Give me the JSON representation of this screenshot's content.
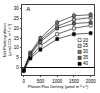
{
  "chart_data": {
    "type": "line",
    "title": "A",
    "xlabel": "Photon Flux Density (μmol m⁻² s⁻¹)",
    "ylabel": "Net Photosynthesis\n(μmol CO₂ m⁻² s⁻¹)",
    "x": [
      0,
      200,
      500,
      1000,
      1500,
      2000
    ],
    "series": [
      {
        "name": "20",
        "color": "white",
        "values": [
          -1.0,
          5.0,
          11.0,
          17.0,
          20.0,
          21.5
        ],
        "yerr": [
          0.3,
          0.8,
          1.0,
          1.2,
          1.5,
          1.3
        ]
      },
      {
        "name": "25",
        "color": "lightgray",
        "values": [
          -1.0,
          7.0,
          14.0,
          21.0,
          24.5,
          25.5
        ],
        "yerr": [
          0.3,
          0.9,
          1.2,
          1.4,
          1.6,
          1.4
        ]
      },
      {
        "name": "30",
        "color": "gray",
        "values": [
          -1.5,
          7.5,
          15.0,
          23.0,
          26.5,
          27.0
        ],
        "yerr": [
          0.3,
          1.0,
          1.3,
          1.5,
          1.7,
          1.5
        ]
      },
      {
        "name": "35",
        "color": "dimgray",
        "values": [
          -1.5,
          6.5,
          13.0,
          20.0,
          22.5,
          23.0
        ],
        "yerr": [
          0.3,
          0.9,
          1.1,
          1.3,
          1.5,
          1.3
        ]
      },
      {
        "name": "40",
        "color": "black",
        "values": [
          -2.0,
          4.5,
          9.0,
          14.5,
          17.0,
          17.5
        ],
        "yerr": [
          0.3,
          0.7,
          0.9,
          1.1,
          1.3,
          1.1
        ]
      }
    ],
    "marker": "square",
    "xlim": [
      -50,
      2100
    ],
    "ylim": [
      -4,
      32
    ],
    "xticks": [
      0,
      500,
      1000,
      1500,
      2000
    ],
    "yticks": [
      0,
      5,
      10,
      15,
      20,
      25,
      30
    ],
    "legend": "lower right",
    "grid": false
  }
}
